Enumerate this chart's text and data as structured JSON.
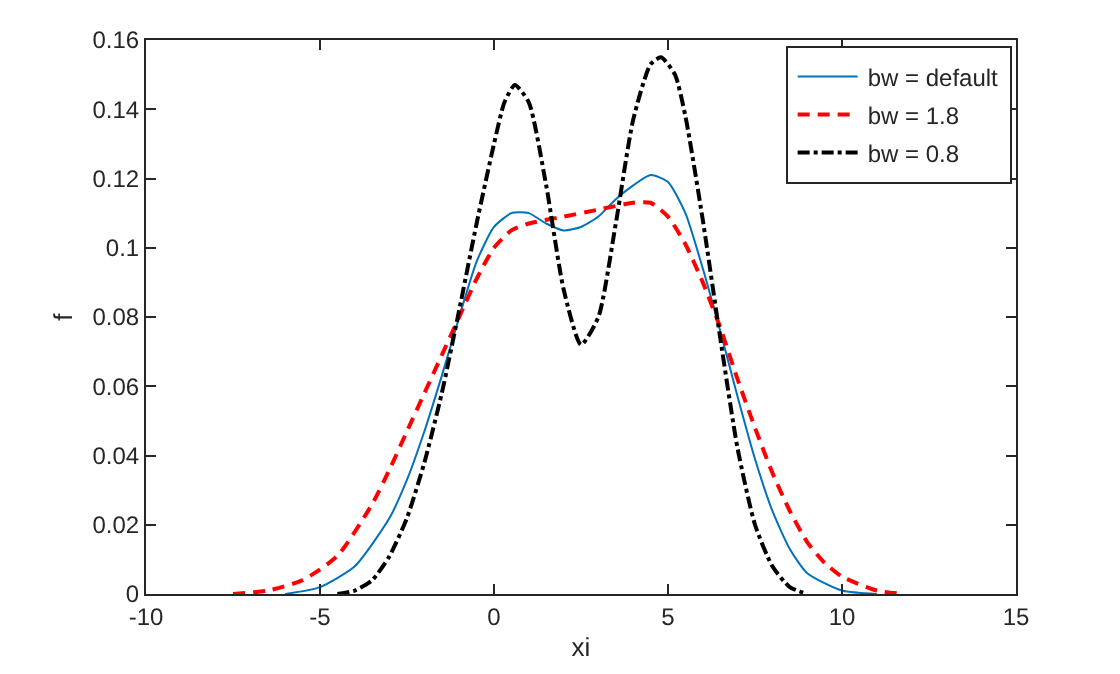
{
  "chart_data": {
    "type": "line",
    "xlabel": "xi",
    "ylabel": "f",
    "xlim": [
      -10,
      15
    ],
    "xticks": [
      -10,
      -5,
      0,
      5,
      10,
      15
    ],
    "ylim": [
      0,
      0.16
    ],
    "yticks": [
      0,
      0.02,
      0.04,
      0.06,
      0.08,
      0.1,
      0.12,
      0.14,
      0.16
    ],
    "grid": false,
    "legend": "top right",
    "marker": "none",
    "series": [
      {
        "name": "bw = default",
        "color": "#0072bd",
        "line_style": "solid",
        "x": [
          -6,
          -5,
          -4,
          -3,
          -2.5,
          -2,
          -1.5,
          -1,
          -0.5,
          0,
          0.5,
          1,
          1.5,
          2,
          2.5,
          3,
          3.5,
          4,
          4.5,
          5,
          5.5,
          6,
          6.5,
          7,
          7.5,
          8,
          8.5,
          9,
          10,
          11
        ],
        "values": [
          0,
          0.002,
          0.008,
          0.022,
          0.033,
          0.047,
          0.063,
          0.08,
          0.096,
          0.106,
          0.11,
          0.11,
          0.107,
          0.105,
          0.106,
          0.109,
          0.114,
          0.118,
          0.121,
          0.119,
          0.11,
          0.094,
          0.076,
          0.057,
          0.039,
          0.024,
          0.013,
          0.006,
          0.001,
          0
        ]
      },
      {
        "name": "bw = 1.8",
        "color": "#ff0000",
        "line_style": "dashed",
        "x": [
          -7.5,
          -6.5,
          -5.5,
          -4.5,
          -3.5,
          -3,
          -2.5,
          -2,
          -1.5,
          -1,
          -0.5,
          0,
          0.5,
          1,
          2,
          3,
          4,
          4.5,
          5,
          5.5,
          6,
          6.5,
          7,
          7.5,
          8,
          8.5,
          9,
          9.5,
          10,
          11,
          11.8
        ],
        "values": [
          0,
          0.001,
          0.004,
          0.011,
          0.026,
          0.036,
          0.047,
          0.058,
          0.069,
          0.08,
          0.091,
          0.1,
          0.105,
          0.107,
          0.109,
          0.111,
          0.113,
          0.113,
          0.109,
          0.101,
          0.09,
          0.077,
          0.062,
          0.048,
          0.035,
          0.024,
          0.015,
          0.009,
          0.005,
          0.001,
          0
        ]
      },
      {
        "name": "bw = 0.8",
        "color": "#000000",
        "line_style": "dashdot",
        "x": [
          -4.5,
          -4,
          -3.5,
          -3,
          -2.5,
          -2,
          -1.5,
          -1,
          -0.5,
          0,
          0.3,
          0.6,
          1,
          1.5,
          2,
          2.5,
          3,
          3.5,
          4,
          4.5,
          4.8,
          5.2,
          5.5,
          6,
          6.5,
          7,
          7.5,
          8,
          8.5,
          9
        ],
        "values": [
          0,
          0.001,
          0.004,
          0.011,
          0.022,
          0.038,
          0.058,
          0.082,
          0.107,
          0.13,
          0.142,
          0.147,
          0.142,
          0.118,
          0.088,
          0.072,
          0.08,
          0.107,
          0.137,
          0.153,
          0.155,
          0.15,
          0.138,
          0.108,
          0.074,
          0.042,
          0.02,
          0.008,
          0.002,
          0
        ]
      }
    ]
  }
}
